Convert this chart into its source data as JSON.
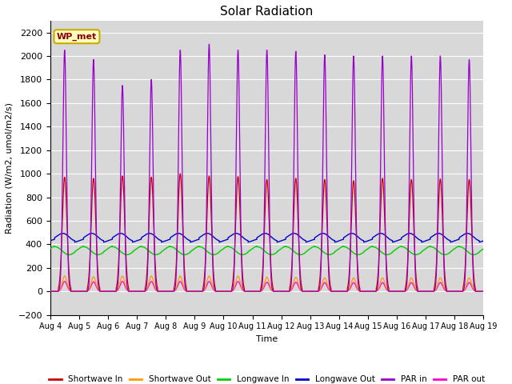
{
  "title": "Solar Radiation",
  "ylabel": "Radiation (W/m2, umol/m2/s)",
  "xlabel": "Time",
  "ylim": [
    -200,
    2300
  ],
  "yticks": [
    -200,
    0,
    200,
    400,
    600,
    800,
    1000,
    1200,
    1400,
    1600,
    1800,
    2000,
    2200
  ],
  "n_days": 15,
  "start_day": 4,
  "colors": {
    "shortwave_in": "#cc0000",
    "shortwave_out": "#ff9900",
    "longwave_in": "#00cc00",
    "longwave_out": "#0000cc",
    "par_in": "#9900cc",
    "par_out": "#ff00cc"
  },
  "legend_labels": [
    "Shortwave In",
    "Shortwave Out",
    "Longwave In",
    "Longwave Out",
    "PAR in",
    "PAR out"
  ],
  "annotation_text": "WP_met",
  "annotation_color": "#8b0000",
  "annotation_bg": "#ffffc0",
  "annotation_edge": "#ccaa00",
  "bg_color": "#d8d8d8",
  "fig_bg": "#ffffff",
  "grid_color": "#ffffff",
  "xtick_labels": [
    "Aug 4",
    "Aug 5",
    "Aug 6",
    "Aug 7",
    "Aug 8",
    "Aug 9",
    "Aug 10",
    "Aug 11",
    "Aug 12",
    "Aug 13",
    "Aug 14",
    "Aug 15",
    "Aug 16",
    "Aug 17",
    "Aug 18",
    "Aug 19"
  ],
  "sw_in_peaks": [
    970,
    960,
    980,
    970,
    1000,
    980,
    975,
    950,
    960,
    950,
    940,
    960,
    950,
    955,
    950
  ],
  "sw_out_peaks": [
    130,
    125,
    130,
    130,
    130,
    130,
    130,
    120,
    120,
    115,
    115,
    115,
    115,
    115,
    115
  ],
  "par_in_peaks": [
    2050,
    1970,
    1750,
    1800,
    2050,
    2100,
    2050,
    2050,
    2040,
    2010,
    2000,
    2000,
    2000,
    2000,
    1970
  ],
  "lw_in_base": 355,
  "lw_out_base": 430
}
